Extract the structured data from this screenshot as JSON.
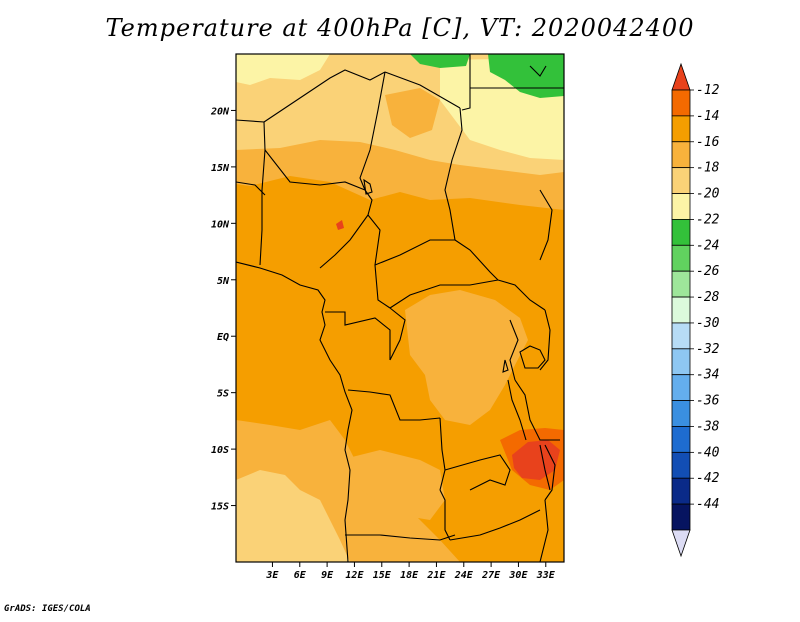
{
  "title": "Temperature at 400hPa [C], VT: 2020042400",
  "credit": "GrADS: IGES/COLA",
  "map": {
    "lon_range": [
      -1,
      35
    ],
    "lat_range": [
      -20,
      25
    ],
    "lat_ticks": [
      {
        "value": 20,
        "label": "20N"
      },
      {
        "value": 15,
        "label": "15N"
      },
      {
        "value": 10,
        "label": "10N"
      },
      {
        "value": 5,
        "label": "5N"
      },
      {
        "value": 0,
        "label": "EQ"
      },
      {
        "value": -5,
        "label": "5S"
      },
      {
        "value": -10,
        "label": "10S"
      },
      {
        "value": -15,
        "label": "15S"
      }
    ],
    "lon_ticks": [
      {
        "value": 3,
        "label": "3E"
      },
      {
        "value": 6,
        "label": "6E"
      },
      {
        "value": 9,
        "label": "9E"
      },
      {
        "value": 12,
        "label": "12E"
      },
      {
        "value": 15,
        "label": "15E"
      },
      {
        "value": 18,
        "label": "18E"
      },
      {
        "value": 21,
        "label": "21E"
      },
      {
        "value": 24,
        "label": "24E"
      },
      {
        "value": 27,
        "label": "27E"
      },
      {
        "value": 30,
        "label": "30E"
      },
      {
        "value": 33,
        "label": "33E"
      }
    ]
  },
  "colorbar": {
    "labels": [
      "-12",
      "-14",
      "-16",
      "-18",
      "-20",
      "-22",
      "-24",
      "-26",
      "-28",
      "-30",
      "-32",
      "-34",
      "-36",
      "-38",
      "-40",
      "-42",
      "-44"
    ],
    "colors_top_to_bottom": [
      "#e8421c",
      "#f46a00",
      "#f59e00",
      "#f8b23c",
      "#fad277",
      "#fcf4a6",
      "#33c13a",
      "#61d25f",
      "#9ee69a",
      "#dcfadc",
      "#b7dcf6",
      "#8ec7f2",
      "#64aeed",
      "#3a8fe0",
      "#1e6cd0",
      "#124eb4",
      "#0a2a88",
      "#061460"
    ],
    "triangle_bottom_color": "#dcdcf4"
  },
  "colors": {
    "orange_main": "#f59e00",
    "orange_light": "#f8b23c",
    "yellow": "#fad277",
    "pale_yellow": "#fcf4a6",
    "green": "#33c13a",
    "red": "#e8421c",
    "dark_orange": "#f46a00"
  }
}
